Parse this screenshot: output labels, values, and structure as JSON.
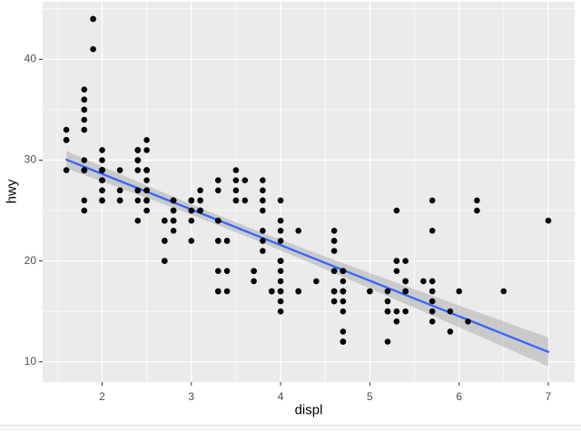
{
  "chart_data": {
    "type": "scatter",
    "title": "",
    "xlabel": "displ",
    "ylabel": "hwy",
    "x_ticks": [
      2,
      3,
      4,
      5,
      6,
      7
    ],
    "x_minor_ticks": [
      1.5,
      2.5,
      3.5,
      4.5,
      5.5,
      6.5
    ],
    "y_ticks": [
      10,
      20,
      30,
      40
    ],
    "y_minor_ticks": [
      15,
      25,
      35,
      45
    ],
    "x_domain": [
      1.334,
      7.295
    ],
    "y_domain": [
      8.0,
      45.7
    ],
    "grid": true,
    "legend": "none",
    "n_points": 234,
    "points": [
      [
        1.8,
        29
      ],
      [
        1.8,
        29
      ],
      [
        2,
        31
      ],
      [
        2,
        30
      ],
      [
        2.8,
        26
      ],
      [
        2.8,
        26
      ],
      [
        3.1,
        27
      ],
      [
        1.8,
        26
      ],
      [
        1.8,
        25
      ],
      [
        2,
        28
      ],
      [
        2,
        27
      ],
      [
        2.8,
        25
      ],
      [
        2.8,
        25
      ],
      [
        3.1,
        25
      ],
      [
        3.1,
        25
      ],
      [
        2.8,
        24
      ],
      [
        3.1,
        25
      ],
      [
        4.2,
        23
      ],
      [
        5.3,
        20
      ],
      [
        5.3,
        15
      ],
      [
        5.3,
        20
      ],
      [
        5.7,
        17
      ],
      [
        6,
        17
      ],
      [
        5.7,
        26
      ],
      [
        5.7,
        23
      ],
      [
        6.2,
        26
      ],
      [
        6.2,
        25
      ],
      [
        7,
        24
      ],
      [
        5.3,
        14
      ],
      [
        5.3,
        19
      ],
      [
        5.7,
        14
      ],
      [
        6.5,
        17
      ],
      [
        2.4,
        27
      ],
      [
        2.4,
        30
      ],
      [
        3.1,
        26
      ],
      [
        3.5,
        29
      ],
      [
        3.6,
        26
      ],
      [
        2.4,
        24
      ],
      [
        3,
        24
      ],
      [
        3.3,
        22
      ],
      [
        3.3,
        22
      ],
      [
        3.3,
        24
      ],
      [
        3.3,
        24
      ],
      [
        3.3,
        17
      ],
      [
        3.8,
        22
      ],
      [
        3.8,
        21
      ],
      [
        3.8,
        23
      ],
      [
        4,
        23
      ],
      [
        3.7,
        19
      ],
      [
        3.7,
        18
      ],
      [
        3.9,
        17
      ],
      [
        3.9,
        17
      ],
      [
        4.7,
        19
      ],
      [
        4.7,
        19
      ],
      [
        4.7,
        12
      ],
      [
        5.2,
        17
      ],
      [
        5.2,
        15
      ],
      [
        3.9,
        17
      ],
      [
        4.7,
        17
      ],
      [
        4.7,
        17
      ],
      [
        4.7,
        18
      ],
      [
        5.2,
        15
      ],
      [
        5.7,
        16
      ],
      [
        5.9,
        15
      ],
      [
        4.7,
        17
      ],
      [
        4.7,
        15
      ],
      [
        4.7,
        13
      ],
      [
        4.7,
        17
      ],
      [
        4.7,
        16
      ],
      [
        4.7,
        12
      ],
      [
        5.2,
        16
      ],
      [
        5.2,
        12
      ],
      [
        5.7,
        15
      ],
      [
        5.9,
        13
      ],
      [
        4.6,
        17
      ],
      [
        5.4,
        17
      ],
      [
        5.4,
        18
      ],
      [
        4,
        17
      ],
      [
        4,
        16
      ],
      [
        4,
        18
      ],
      [
        4,
        17
      ],
      [
        4.6,
        19
      ],
      [
        5,
        17
      ],
      [
        4.2,
        17
      ],
      [
        4.2,
        17
      ],
      [
        4.6,
        16
      ],
      [
        4.6,
        16
      ],
      [
        4.6,
        17
      ],
      [
        5.4,
        15
      ],
      [
        5.4,
        17
      ],
      [
        3.8,
        26
      ],
      [
        3.8,
        25
      ],
      [
        4,
        26
      ],
      [
        4,
        24
      ],
      [
        4.6,
        21
      ],
      [
        4.6,
        22
      ],
      [
        4.6,
        23
      ],
      [
        4.6,
        22
      ],
      [
        5.4,
        20
      ],
      [
        1.6,
        33
      ],
      [
        1.6,
        32
      ],
      [
        1.6,
        32
      ],
      [
        1.6,
        29
      ],
      [
        1.6,
        32
      ],
      [
        1.8,
        34
      ],
      [
        1.8,
        36
      ],
      [
        1.8,
        36
      ],
      [
        2,
        29
      ],
      [
        2.4,
        26
      ],
      [
        2.4,
        27
      ],
      [
        2.4,
        30
      ],
      [
        2.4,
        31
      ],
      [
        2.5,
        26
      ],
      [
        2.5,
        26
      ],
      [
        3.3,
        28
      ],
      [
        2,
        26
      ],
      [
        2,
        29
      ],
      [
        2,
        28
      ],
      [
        2,
        27
      ],
      [
        2.7,
        24
      ],
      [
        2.7,
        24
      ],
      [
        2.7,
        24
      ],
      [
        3,
        22
      ],
      [
        3.7,
        19
      ],
      [
        4,
        20
      ],
      [
        4.7,
        17
      ],
      [
        4.7,
        12
      ],
      [
        4.7,
        19
      ],
      [
        5.7,
        18
      ],
      [
        6.1,
        14
      ],
      [
        4,
        15
      ],
      [
        4.2,
        17
      ],
      [
        4.4,
        18
      ],
      [
        4.6,
        17
      ],
      [
        5.4,
        18
      ],
      [
        5.4,
        17
      ],
      [
        5.4,
        18
      ],
      [
        4,
        17
      ],
      [
        4,
        19
      ],
      [
        4.6,
        19
      ],
      [
        5,
        17
      ],
      [
        2.4,
        29
      ],
      [
        2.4,
        27
      ],
      [
        2.5,
        31
      ],
      [
        2.5,
        32
      ],
      [
        3.5,
        27
      ],
      [
        3.5,
        26
      ],
      [
        3,
        26
      ],
      [
        3,
        25
      ],
      [
        3.5,
        26
      ],
      [
        3.3,
        19
      ],
      [
        3.3,
        17
      ],
      [
        4,
        20
      ],
      [
        5.6,
        18
      ],
      [
        3.1,
        26
      ],
      [
        3.8,
        26
      ],
      [
        3.8,
        27
      ],
      [
        3.8,
        28
      ],
      [
        5.3,
        25
      ],
      [
        2.5,
        26
      ],
      [
        2.5,
        27
      ],
      [
        2.5,
        26
      ],
      [
        2.5,
        25
      ],
      [
        2.5,
        27
      ],
      [
        2.5,
        26
      ],
      [
        2.2,
        26
      ],
      [
        2.2,
        29
      ],
      [
        2.5,
        26
      ],
      [
        2.5,
        27
      ],
      [
        2.5,
        26
      ],
      [
        2.5,
        26
      ],
      [
        2.5,
        27
      ],
      [
        2.5,
        29
      ],
      [
        2.7,
        20
      ],
      [
        2.7,
        20
      ],
      [
        3.4,
        19
      ],
      [
        3.4,
        17
      ],
      [
        4,
        20
      ],
      [
        4.7,
        17
      ],
      [
        2.2,
        26
      ],
      [
        2.2,
        27
      ],
      [
        2.4,
        30
      ],
      [
        2.4,
        31
      ],
      [
        3,
        26
      ],
      [
        3,
        26
      ],
      [
        3.5,
        28
      ],
      [
        2.2,
        26
      ],
      [
        2.2,
        27
      ],
      [
        2.4,
        31
      ],
      [
        2.4,
        31
      ],
      [
        3,
        26
      ],
      [
        3,
        26
      ],
      [
        3.3,
        27
      ],
      [
        1.8,
        30
      ],
      [
        1.8,
        33
      ],
      [
        1.8,
        35
      ],
      [
        1.8,
        35
      ],
      [
        1.8,
        37
      ],
      [
        4.7,
        17
      ],
      [
        5.7,
        18
      ],
      [
        2.7,
        22
      ],
      [
        2.7,
        22
      ],
      [
        2.7,
        22
      ],
      [
        3.4,
        22
      ],
      [
        3.4,
        22
      ],
      [
        4,
        20
      ],
      [
        4,
        22
      ],
      [
        2,
        29
      ],
      [
        2,
        29
      ],
      [
        2,
        28
      ],
      [
        2,
        29
      ],
      [
        2.8,
        24
      ],
      [
        1.9,
        44
      ],
      [
        2,
        29
      ],
      [
        2,
        26
      ],
      [
        2,
        29
      ],
      [
        2,
        29
      ],
      [
        2.5,
        29
      ],
      [
        2.5,
        29
      ],
      [
        2.8,
        23
      ],
      [
        2.8,
        24
      ],
      [
        1.9,
        44
      ],
      [
        1.9,
        41
      ],
      [
        2,
        29
      ],
      [
        2,
        26
      ],
      [
        2.5,
        28
      ],
      [
        2.5,
        29
      ],
      [
        1.8,
        29
      ],
      [
        1.8,
        29
      ],
      [
        2,
        28
      ],
      [
        2,
        29
      ],
      [
        2.8,
        26
      ],
      [
        2.8,
        26
      ],
      [
        3.6,
        28
      ]
    ],
    "smooth": {
      "method": "lm",
      "intercept": 35.698,
      "slope": -3.531,
      "x_range": [
        1.6,
        7.0
      ],
      "ci_level": 0.95,
      "ci": {
        "n": 234,
        "x_mean": 3.472,
        "sxx": 388.7,
        "sigma": 3.836,
        "t": 1.97
      }
    },
    "colors": {
      "panel_background": "#EBEBEB",
      "grid": "#FFFFFF",
      "point": "#000000",
      "smooth_line": "#3366FF",
      "ribbon": "#999999",
      "ribbon_alpha": 0.4,
      "tick_text": "#4D4D4D",
      "tick_mark": "#333333",
      "axis_title": "#000000",
      "figure_background": "#FFFFFF",
      "footer_band": "#F4F6F8",
      "footer_border": "#E0E3E7"
    }
  }
}
